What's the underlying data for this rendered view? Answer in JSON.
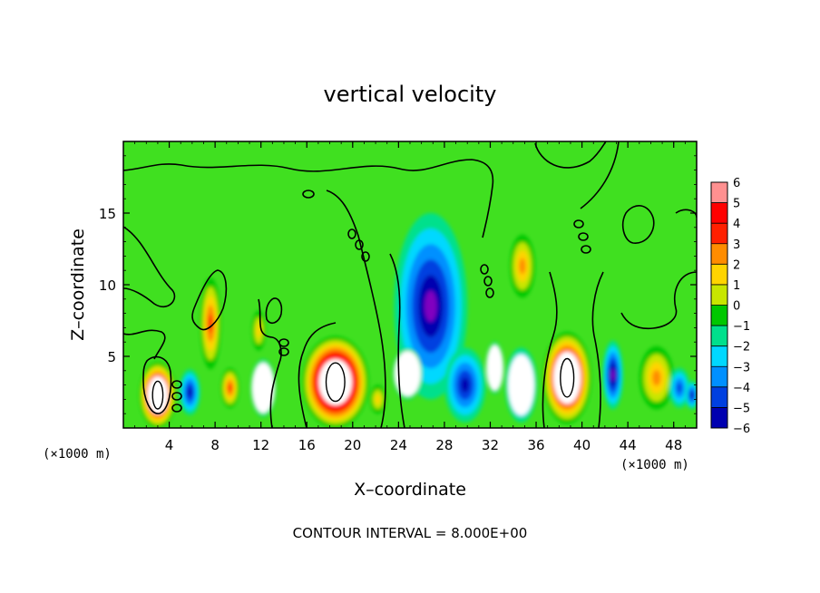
{
  "chart_data": {
    "type": "heatmap",
    "title": "vertical velocity",
    "xlabel": "X–coordinate",
    "ylabel": "Z–coordinate",
    "x_unit_label_left": "(×1000 m)",
    "x_unit_label_right": "(×1000 m)",
    "xlim": [
      0,
      50
    ],
    "ylim": [
      0,
      20
    ],
    "x_ticks": [
      4,
      8,
      12,
      16,
      20,
      24,
      28,
      32,
      36,
      40,
      44,
      48
    ],
    "y_ticks": [
      5,
      10,
      15
    ],
    "footnote": "CONTOUR INTERVAL = 8.000E+00",
    "colorbar": {
      "levels": [
        6,
        5,
        4,
        3,
        2,
        1,
        0,
        -1,
        -2,
        -3,
        -4,
        -5,
        -6
      ],
      "level_labels": [
        "6",
        "5",
        "4",
        "3",
        "2",
        "1",
        "0",
        "−1",
        "−2",
        "−3",
        "−4",
        "−5",
        "−6"
      ],
      "colors": [
        "#ff9090",
        "#ff0000",
        "#ff2000",
        "#ff8c00",
        "#ffd400",
        "#c8e600",
        "#00c800",
        "#00e08c",
        "#00d8ff",
        "#0090ff",
        "#0040e0",
        "#0000b0",
        "#8000c0"
      ],
      "saturated_high_color": "#ffffff",
      "saturated_low_color": "#ffffff"
    },
    "background_field_color": "#40e020",
    "features": [
      {
        "kind": "updraft",
        "x": 3,
        "z": 2.3,
        "wx": 1.6,
        "wz": 2.3,
        "value": 10
      },
      {
        "kind": "downdraft",
        "x": 5.8,
        "z": 2.5,
        "wx": 0.9,
        "wz": 1.6,
        "value": -5
      },
      {
        "kind": "updraft",
        "x": 7.6,
        "z": 7.3,
        "wx": 0.9,
        "wz": 3.2,
        "value": 4.5
      },
      {
        "kind": "updraft",
        "x": 9.3,
        "z": 2.8,
        "wx": 0.8,
        "wz": 1.4,
        "value": 5
      },
      {
        "kind": "downdraft",
        "x": 12.2,
        "z": 2.8,
        "wx": 1.1,
        "wz": 2.0,
        "value": -6.5
      },
      {
        "kind": "updraft",
        "x": 11.8,
        "z": 6.8,
        "wx": 0.6,
        "wz": 1.4,
        "value": 2.5
      },
      {
        "kind": "updraft",
        "x": 18.5,
        "z": 3.2,
        "wx": 2.9,
        "wz": 3.2,
        "value": 12
      },
      {
        "kind": "updraft",
        "x": 22.2,
        "z": 2.0,
        "wx": 0.7,
        "wz": 1.0,
        "value": 2.5
      },
      {
        "kind": "downdraft",
        "x": 26.8,
        "z": 8.5,
        "wx": 3.2,
        "wz": 6.5,
        "value": -5.5
      },
      {
        "kind": "downdraft",
        "x": 24.8,
        "z": 3.8,
        "wx": 1.3,
        "wz": 1.8,
        "value": -6.5
      },
      {
        "kind": "downdraft",
        "x": 29.8,
        "z": 3.0,
        "wx": 1.8,
        "wz": 2.6,
        "value": -4.5
      },
      {
        "kind": "downdraft",
        "x": 32.4,
        "z": 4.2,
        "wx": 0.8,
        "wz": 1.8,
        "value": -6.5
      },
      {
        "kind": "downdraft",
        "x": 34.7,
        "z": 3.0,
        "wx": 1.4,
        "wz": 2.6,
        "value": -7
      },
      {
        "kind": "updraft",
        "x": 34.8,
        "z": 11.3,
        "wx": 1.1,
        "wz": 2.2,
        "value": 3.2
      },
      {
        "kind": "updraft",
        "x": 38.7,
        "z": 3.5,
        "wx": 2.1,
        "wz": 3.2,
        "value": 10
      },
      {
        "kind": "downdraft",
        "x": 42.7,
        "z": 3.7,
        "wx": 0.9,
        "wz": 2.4,
        "value": -5.5
      },
      {
        "kind": "updraft",
        "x": 46.5,
        "z": 3.5,
        "wx": 1.5,
        "wz": 2.2,
        "value": 4
      },
      {
        "kind": "downdraft",
        "x": 48.5,
        "z": 2.8,
        "wx": 0.9,
        "wz": 1.4,
        "value": -4
      },
      {
        "kind": "downdraft",
        "x": 49.6,
        "z": 2.3,
        "wx": 0.6,
        "wz": 1.0,
        "value": -5
      }
    ]
  }
}
